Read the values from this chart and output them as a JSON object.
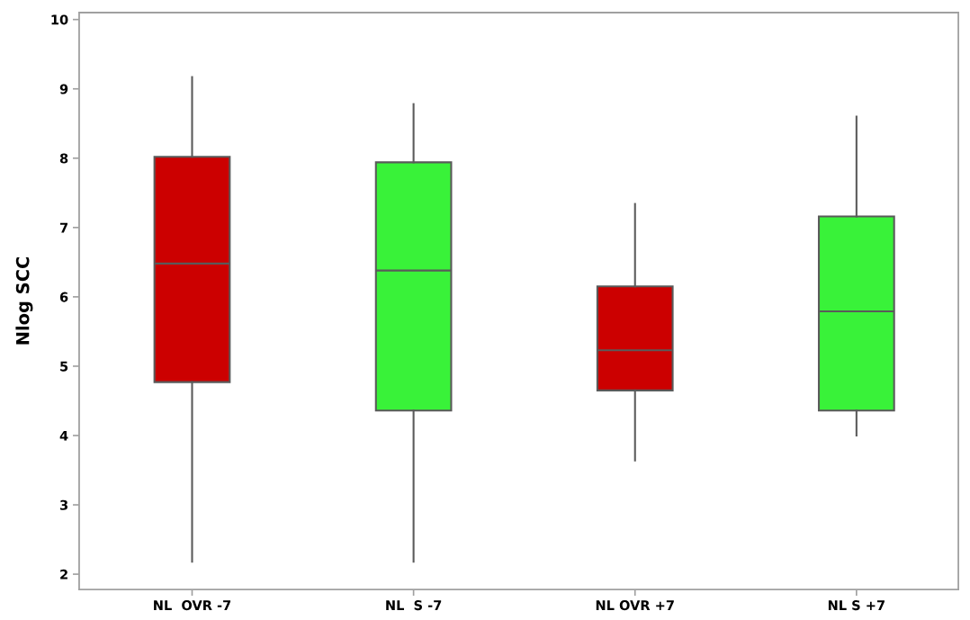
{
  "chart_data": {
    "type": "box",
    "ylabel": "Nlog SCC",
    "categories": [
      "NL  OVR -7",
      "NL  S -7",
      "NL OVR +7",
      "NL S +7"
    ],
    "boxes": [
      {
        "low": 2.18,
        "q1": 4.77,
        "median": 6.48,
        "q3": 8.02,
        "high": 9.17
      },
      {
        "low": 2.18,
        "q1": 4.36,
        "median": 6.38,
        "q3": 7.94,
        "high": 8.78
      },
      {
        "low": 3.64,
        "q1": 4.65,
        "median": 5.23,
        "q3": 6.15,
        "high": 7.34
      },
      {
        "low": 4.0,
        "q1": 4.36,
        "median": 5.79,
        "q3": 7.16,
        "high": 8.6
      }
    ],
    "colors": [
      "#cc0000",
      "#39f239",
      "#cc0000",
      "#39f239"
    ],
    "ylim": [
      1.78,
      10.1
    ],
    "yticks": [
      2,
      3,
      4,
      5,
      6,
      7,
      8,
      9,
      10
    ],
    "grid": false,
    "legend": false
  }
}
